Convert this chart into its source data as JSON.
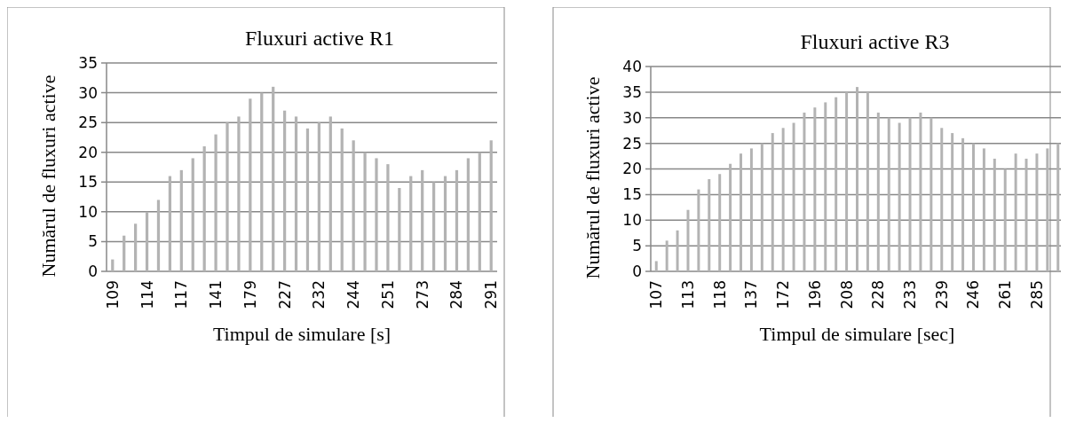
{
  "chart_data": [
    {
      "type": "bar",
      "title": "Fluxuri active R1",
      "xlabel": "Timpul de simulare [s]",
      "ylabel": "Numărul de fluxuri active",
      "categories": [
        "109",
        null,
        null,
        "114",
        null,
        null,
        "117",
        null,
        null,
        "141",
        null,
        null,
        "179",
        null,
        null,
        "227",
        null,
        null,
        "232",
        null,
        null,
        "244",
        null,
        null,
        "251",
        null,
        null,
        "273",
        null,
        null,
        "284",
        null,
        null,
        "291"
      ],
      "values": [
        2,
        6,
        8,
        10,
        12,
        16,
        17,
        19,
        21,
        23,
        25,
        26,
        29,
        30,
        31,
        27,
        26,
        24,
        25,
        26,
        24,
        22,
        20,
        19,
        18,
        14,
        16,
        17,
        15,
        16,
        17,
        19,
        20,
        22
      ],
      "color": "#b3b3b3",
      "ylim": [
        0,
        35
      ],
      "yticks": [
        0,
        5,
        10,
        15,
        20,
        25,
        30,
        35
      ],
      "grid": "y"
    },
    {
      "type": "bar",
      "title": "Fluxuri active R3",
      "xlabel": "Timpul de simulare [sec]",
      "ylabel": "Numărul de fluxuri active",
      "categories": [
        "107",
        null,
        null,
        "113",
        null,
        null,
        "118",
        null,
        null,
        "137",
        null,
        null,
        "172",
        null,
        null,
        "196",
        null,
        null,
        "208",
        null,
        null,
        "228",
        null,
        null,
        "233",
        null,
        null,
        "239",
        null,
        null,
        "246",
        null,
        null,
        "261",
        null,
        null,
        "285",
        null,
        null
      ],
      "values": [
        2,
        6,
        8,
        12,
        16,
        18,
        19,
        21,
        23,
        24,
        25,
        27,
        28,
        29,
        31,
        32,
        33,
        34,
        35,
        36,
        35,
        31,
        30,
        29,
        30,
        31,
        30,
        28,
        27,
        26,
        25,
        24,
        22,
        20,
        23,
        22,
        23,
        24,
        25
      ],
      "color": "#b3b3b3",
      "ylim": [
        0,
        40
      ],
      "yticks": [
        0,
        5,
        10,
        15,
        20,
        25,
        30,
        35,
        40
      ],
      "grid": "y"
    }
  ]
}
